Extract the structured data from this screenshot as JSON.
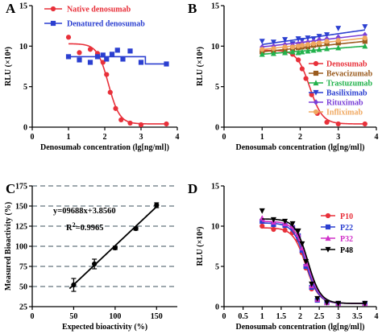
{
  "chart_data": [
    {
      "panel": "A",
      "type": "scatter",
      "xlabel": "Denosumab concentration (lg[ng/ml])",
      "ylabel": "RLU (×10⁴)",
      "xlim": [
        0,
        4
      ],
      "ylim": [
        0,
        15
      ],
      "xticks": [
        0,
        1,
        2,
        3,
        4
      ],
      "yticks": [
        0,
        5,
        10,
        15
      ],
      "legend_position": "top-left",
      "series": [
        {
          "name": "Native denosumab",
          "color": "#e8303a",
          "marker": "circle",
          "fit": "sigmoid",
          "fit_params": {
            "top": 10.3,
            "bottom": 0.4,
            "ec50": 2.1,
            "slope": 6.5
          },
          "x": [
            1.0,
            1.3,
            1.6,
            1.8,
            1.95,
            2.05,
            2.15,
            2.3,
            2.45,
            2.7,
            3.0,
            3.7
          ],
          "y": [
            11.1,
            9.2,
            9.6,
            9.1,
            8.0,
            6.5,
            4.3,
            2.3,
            0.9,
            0.5,
            0.3,
            0.4
          ]
        },
        {
          "name": "Denatured denosumab",
          "color": "#2b3fd0",
          "marker": "square",
          "fit": "step",
          "fit_params": {
            "top": 8.7,
            "bottom": 7.8,
            "ec50": 3.12
          },
          "x": [
            1.0,
            1.3,
            1.6,
            1.8,
            1.95,
            2.05,
            2.2,
            2.35,
            2.5,
            2.7,
            3.0,
            3.7
          ],
          "y": [
            8.7,
            8.3,
            8.0,
            8.7,
            8.9,
            8.4,
            9.0,
            9.5,
            8.4,
            9.4,
            8.0,
            7.8
          ]
        }
      ]
    },
    {
      "panel": "B",
      "type": "scatter",
      "xlabel": "Denosumab concentration (lg[ng/ml])",
      "ylabel": "RLU (×10⁴)",
      "xlim": [
        0,
        4
      ],
      "ylim": [
        0,
        15
      ],
      "xticks": [
        0,
        1,
        2,
        3,
        4
      ],
      "yticks": [
        0,
        5,
        10,
        15
      ],
      "legend_position": "right",
      "series": [
        {
          "name": "Denosumab",
          "color": "#e8303a",
          "marker": "circle",
          "fit": "sigmoid",
          "fit_params": {
            "top": 9.5,
            "bottom": 0.4,
            "ec50": 2.25,
            "slope": 6.0
          },
          "x": [
            1.0,
            1.3,
            1.6,
            1.8,
            1.95,
            2.05,
            2.15,
            2.3,
            2.45,
            2.7,
            3.0,
            3.7
          ],
          "y": [
            9.6,
            9.5,
            9.2,
            9.0,
            8.3,
            7.2,
            6.0,
            4.0,
            1.7,
            0.6,
            0.4,
            0.4
          ]
        },
        {
          "name": "Bevacizumab",
          "color": "#9a5b1e",
          "marker": "square",
          "fit": "line",
          "fit_params": {
            "start": 9.3,
            "end": 10.6
          },
          "x": [
            1.0,
            1.3,
            1.6,
            1.8,
            1.95,
            2.05,
            2.2,
            2.35,
            2.5,
            2.7,
            3.0,
            3.7
          ],
          "y": [
            9.3,
            9.4,
            9.6,
            9.7,
            9.8,
            9.9,
            9.9,
            10.1,
            10.2,
            10.3,
            10.4,
            10.6
          ]
        },
        {
          "name": "Trastuzumab",
          "color": "#22b24c",
          "marker": "triangle-up",
          "fit": "line",
          "fit_params": {
            "start": 9.0,
            "end": 10.0
          },
          "x": [
            1.0,
            1.3,
            1.6,
            1.8,
            1.95,
            2.05,
            2.2,
            2.35,
            2.5,
            2.7,
            3.0,
            3.7
          ],
          "y": [
            9.0,
            9.1,
            9.2,
            9.3,
            9.2,
            9.3,
            9.4,
            9.5,
            9.6,
            9.7,
            9.8,
            10.0
          ]
        },
        {
          "name": "Basiliximab",
          "color": "#2b3fd0",
          "marker": "triangle-down",
          "fit": "line",
          "fit_params": {
            "start": 10.2,
            "end": 12.0
          },
          "x": [
            1.0,
            1.3,
            1.6,
            1.8,
            1.95,
            2.05,
            2.2,
            2.35,
            2.5,
            2.7,
            3.0,
            3.7
          ],
          "y": [
            10.6,
            10.5,
            10.8,
            10.3,
            10.9,
            10.7,
            11.0,
            10.9,
            11.2,
            11.4,
            12.2,
            12.4
          ]
        },
        {
          "name": "Rituximab",
          "color": "#7a3fd8",
          "marker": "diamond",
          "fit": "line",
          "fit_params": {
            "start": 9.9,
            "end": 11.4
          },
          "x": [
            1.0,
            1.3,
            1.6,
            1.8,
            1.95,
            2.05,
            2.2,
            2.35,
            2.5,
            2.7,
            3.0,
            3.7
          ],
          "y": [
            9.9,
            10.0,
            10.2,
            10.1,
            10.3,
            10.4,
            10.5,
            10.6,
            10.8,
            10.9,
            11.1,
            11.4
          ]
        },
        {
          "name": "Infliximab",
          "color": "#f0a860",
          "marker": "circle",
          "fit": "line",
          "fit_params": {
            "start": 9.6,
            "end": 11.0
          },
          "x": [
            1.0,
            1.3,
            1.6,
            1.8,
            1.95,
            2.05,
            2.2,
            2.35,
            2.5,
            2.7,
            3.0,
            3.7
          ],
          "y": [
            9.6,
            9.7,
            9.9,
            9.9,
            10.0,
            10.1,
            10.2,
            10.3,
            10.4,
            10.6,
            10.7,
            11.0
          ]
        }
      ]
    },
    {
      "panel": "C",
      "type": "scatter",
      "xlabel": "Expected bioactivity (%)",
      "ylabel": "Measured Bioactivity (%)",
      "xlim": [
        0,
        175
      ],
      "ylim": [
        25,
        175
      ],
      "xticks": [
        0,
        50,
        100,
        150
      ],
      "yticks": [
        25,
        50,
        75,
        100,
        125,
        150,
        175
      ],
      "grid": "horizontal-dashed",
      "annotations": [
        "y=09688x+3.8560",
        "R²=0.9965"
      ],
      "series": [
        {
          "name": "",
          "color": "#000000",
          "marker": "circle",
          "fit": "linear",
          "fit_params": {
            "slope": 0.9688,
            "intercept": 3.856
          },
          "x": [
            50,
            75,
            100,
            125,
            150
          ],
          "y": [
            52,
            78,
            98,
            122,
            151
          ],
          "error": [
            8,
            6,
            2,
            2,
            3
          ]
        }
      ]
    },
    {
      "panel": "D",
      "type": "scatter",
      "xlabel": "Denosumab concentration (lg[ng/ml])",
      "ylabel": "RLU (×10⁴)",
      "xlim": [
        0,
        4
      ],
      "ylim": [
        0,
        15
      ],
      "xticks": [
        0,
        0.5,
        1,
        1.5,
        2,
        2.5,
        3,
        3.5,
        4
      ],
      "yticks": [
        0,
        5,
        10,
        15
      ],
      "legend_position": "right",
      "series": [
        {
          "name": "P10",
          "color": "#e8303a",
          "marker": "circle",
          "fit": "sigmoid",
          "fit_params": {
            "top": 9.8,
            "bottom": 0.4,
            "ec50": 2.15,
            "slope": 6.0
          },
          "x": [
            1.0,
            1.3,
            1.6,
            1.8,
            1.95,
            2.05,
            2.15,
            2.3,
            2.45,
            2.7,
            3.0,
            3.7
          ],
          "y": [
            10.0,
            9.6,
            9.5,
            9.2,
            8.3,
            6.7,
            4.8,
            2.2,
            0.8,
            0.5,
            0.4,
            0.4
          ]
        },
        {
          "name": "P22",
          "color": "#2b3fd0",
          "marker": "square",
          "fit": "sigmoid",
          "fit_params": {
            "top": 10.4,
            "bottom": 0.4,
            "ec50": 2.15,
            "slope": 6.0
          },
          "x": [
            1.0,
            1.3,
            1.6,
            1.8,
            1.95,
            2.05,
            2.15,
            2.3,
            2.45,
            2.7,
            3.0,
            3.7
          ],
          "y": [
            10.6,
            10.2,
            10.1,
            9.8,
            8.8,
            7.0,
            5.0,
            2.4,
            0.8,
            0.5,
            0.4,
            0.4
          ]
        },
        {
          "name": "P32",
          "color": "#d030c8",
          "marker": "triangle-up",
          "fit": "sigmoid",
          "fit_params": {
            "top": 10.6,
            "bottom": 0.4,
            "ec50": 2.18,
            "slope": 6.0
          },
          "x": [
            1.0,
            1.3,
            1.6,
            1.8,
            1.95,
            2.05,
            2.15,
            2.3,
            2.45,
            2.7,
            3.0,
            3.7
          ],
          "y": [
            11.0,
            10.5,
            10.3,
            10.0,
            9.0,
            7.3,
            5.3,
            2.6,
            0.9,
            0.5,
            0.4,
            0.4
          ]
        },
        {
          "name": "P48",
          "color": "#000000",
          "marker": "triangle-down",
          "fit": "sigmoid",
          "fit_params": {
            "top": 10.9,
            "bottom": 0.4,
            "ec50": 2.2,
            "slope": 6.0
          },
          "x": [
            1.0,
            1.3,
            1.6,
            1.8,
            1.95,
            2.05,
            2.15,
            2.3,
            2.45,
            2.7,
            3.0,
            3.7
          ],
          "y": [
            11.9,
            10.8,
            10.6,
            10.3,
            9.4,
            7.8,
            5.6,
            2.8,
            1.0,
            0.5,
            0.4,
            0.4
          ]
        }
      ]
    }
  ]
}
